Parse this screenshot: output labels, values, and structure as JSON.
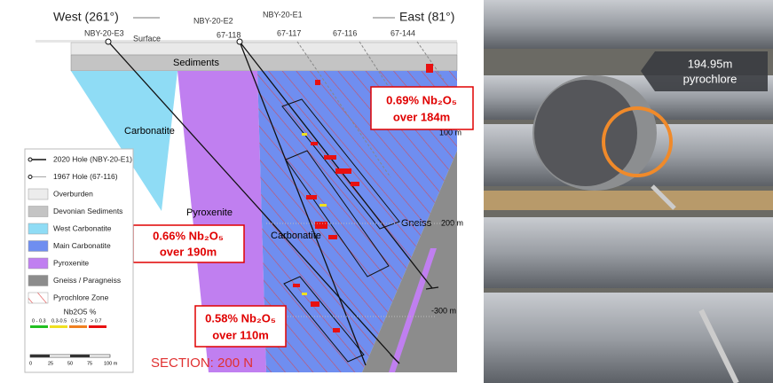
{
  "section": {
    "west": "West (261°)",
    "east": "East (81°)",
    "surface": "Surface",
    "title": "SECTION: 200 N"
  },
  "holes": {
    "e3": "NBY-20-E3",
    "e2": "NBY-20-E2",
    "e1": "NBY-20-E1",
    "h118": "67-118",
    "h117": "67-117",
    "h116": "67-116",
    "h144": "67-144"
  },
  "units": {
    "sediments": "Sediments",
    "west_carb": "Carbonatite",
    "pyroxenite": "Pyroxenite",
    "main_carb": "Carbonatite",
    "gneiss": "Gneiss"
  },
  "depths": {
    "d100": "100 m",
    "d200": "200 m",
    "d300": "-300 m"
  },
  "callouts": [
    {
      "grade": "0.69% Nb₂O₅",
      "length": "over 184m"
    },
    {
      "grade": "0.66% Nb₂O₅",
      "length": "over 190m"
    },
    {
      "grade": "0.58% Nb₂O₅",
      "length": "over 110m"
    }
  ],
  "legend": {
    "items": [
      "2020 Hole (NBY-20-E1)",
      "1967 Hole (67-116)",
      "Overburden",
      "Devonian Sediments",
      "West Carbonatite",
      "Main Carbonatite",
      "Pyroxenite",
      "Gneiss / Paragneiss",
      "Pyrochlore Zone"
    ],
    "grade_title": "Nb2O5 %",
    "grades": [
      "0 - 0.3",
      "0.3-0.5",
      "0.5-0.7",
      "> 0.7"
    ],
    "scale": [
      "0",
      "25",
      "50",
      "75",
      "100 m"
    ]
  },
  "photo": {
    "depth": "194.95m",
    "mineral": "pyrochlore"
  }
}
